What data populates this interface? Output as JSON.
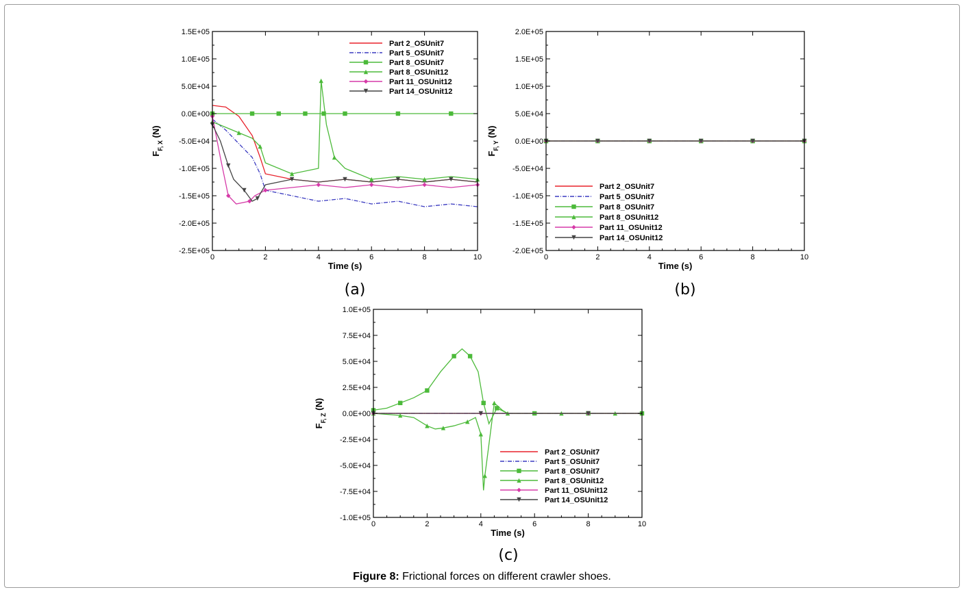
{
  "caption": {
    "label": "Figure 8:",
    "text": "Frictional forces on different crawler shoes."
  },
  "series_styles": [
    {
      "name": "Part 2_OSUnit7",
      "color": "#e8202a",
      "dash": "",
      "marker": "none"
    },
    {
      "name": "Part 5_OSUnit7",
      "color": "#3a3ac0",
      "dash": "6,2,1,2",
      "marker": "none"
    },
    {
      "name": "Part 8_OSUnit7",
      "color": "#4cba3a",
      "dash": "",
      "marker": "square"
    },
    {
      "name": "Part 8_OSUnit12",
      "color": "#4cba3a",
      "dash": "",
      "marker": "triangle"
    },
    {
      "name": "Part 11_OSUnit12",
      "color": "#d63aa8",
      "dash": "",
      "marker": "diamond"
    },
    {
      "name": "Part 14_OSUnit12",
      "color": "#444444",
      "dash": "",
      "marker": "tri-down"
    }
  ],
  "chart_data": [
    {
      "panel": "(a)",
      "type": "line",
      "xlabel": "Time (s)",
      "ylabel": "F_F,X (N)",
      "ylabel_main": "F",
      "ylabel_sub": "F, X",
      "ylabel_unit": " (N)",
      "xlim": [
        0,
        10
      ],
      "ylim": [
        -250000,
        150000
      ],
      "xticks": [
        "0",
        "2",
        "4",
        "6",
        "8",
        "10"
      ],
      "yticks": [
        "1.5E+05",
        "1.0E+05",
        "5.0E+04",
        "0.0E+00",
        "-5.0E+04",
        "-1.0E+05",
        "-1.5E+05",
        "-2.0E+05",
        "-2.5E+05"
      ],
      "legend_position": "top-right",
      "series": [
        {
          "name": "Part 2_OSUnit7",
          "x": [
            0,
            0.5,
            1.0,
            1.5,
            1.8,
            2,
            3,
            4,
            5,
            6,
            7,
            8,
            9,
            10
          ],
          "y": [
            15000,
            12000,
            -5000,
            -40000,
            -80000,
            -110000,
            -120000,
            -125000,
            -120000,
            -125000,
            -120000,
            -125000,
            -120000,
            -125000
          ]
        },
        {
          "name": "Part 5_OSUnit7",
          "x": [
            0,
            0.5,
            1.0,
            1.5,
            1.8,
            2,
            3,
            4,
            5,
            6,
            7,
            8,
            9,
            10
          ],
          "y": [
            -10000,
            -30000,
            -55000,
            -80000,
            -110000,
            -140000,
            -150000,
            -160000,
            -155000,
            -165000,
            -160000,
            -170000,
            -165000,
            -170000
          ]
        },
        {
          "name": "Part 8_OSUnit7",
          "x": [
            0,
            1.0,
            1.5,
            2,
            2.5,
            3,
            3.5,
            4,
            4.2,
            4.5,
            5,
            6,
            7,
            8,
            9,
            10
          ],
          "y": [
            0,
            0,
            0,
            0,
            0,
            0,
            0,
            0,
            0,
            0,
            0,
            0,
            0,
            0,
            0,
            0
          ]
        },
        {
          "name": "Part 8_OSUnit12",
          "x": [
            0,
            0.5,
            1.0,
            1.5,
            1.8,
            2,
            3,
            4,
            4.1,
            4.3,
            4.6,
            5,
            6,
            7,
            8,
            9,
            10
          ],
          "y": [
            -15000,
            -25000,
            -35000,
            -45000,
            -60000,
            -90000,
            -110000,
            -100000,
            60000,
            -20000,
            -80000,
            -100000,
            -120000,
            -115000,
            -120000,
            -115000,
            -120000
          ]
        },
        {
          "name": "Part 11_OSUnit12",
          "x": [
            0,
            0.3,
            0.6,
            0.9,
            1.4,
            1.6,
            2,
            3,
            4,
            5,
            6,
            7,
            8,
            9,
            10
          ],
          "y": [
            -5000,
            -80000,
            -150000,
            -165000,
            -160000,
            -150000,
            -140000,
            -135000,
            -130000,
            -135000,
            -130000,
            -135000,
            -130000,
            -135000,
            -130000
          ]
        },
        {
          "name": "Part 14_OSUnit12",
          "x": [
            0,
            0.3,
            0.6,
            0.8,
            1.2,
            1.5,
            1.7,
            2,
            3,
            4,
            5,
            6,
            7,
            8,
            9,
            10
          ],
          "y": [
            -20000,
            -50000,
            -95000,
            -120000,
            -140000,
            -160000,
            -155000,
            -130000,
            -120000,
            -125000,
            -120000,
            -125000,
            -120000,
            -125000,
            -120000,
            -125000
          ]
        }
      ]
    },
    {
      "panel": "(b)",
      "type": "line",
      "xlabel": "Time (s)",
      "ylabel": "F_F,Y (N)",
      "ylabel_main": "F",
      "ylabel_sub": "F, Y",
      "ylabel_unit": " (N)",
      "xlim": [
        0,
        10
      ],
      "ylim": [
        -200000,
        200000
      ],
      "xticks": [
        "0",
        "2",
        "4",
        "6",
        "8",
        "10"
      ],
      "yticks": [
        "2.0E+05",
        "1.5E+05",
        "1.0E+05",
        "5.0E+04",
        "0.0E+00",
        "-5.0E+04",
        "-1.0E+05",
        "-1.5E+05",
        "-2.0E+05"
      ],
      "legend_position": "bottom-left",
      "series": [
        {
          "name": "Part 2_OSUnit7",
          "x": [
            0,
            1,
            2,
            3,
            4,
            5,
            6,
            7,
            8,
            9,
            10
          ],
          "y": [
            0,
            0,
            0,
            0,
            0,
            0,
            0,
            0,
            0,
            0,
            0
          ]
        },
        {
          "name": "Part 5_OSUnit7",
          "x": [
            0,
            1,
            2,
            3,
            4,
            5,
            6,
            7,
            8,
            9,
            10
          ],
          "y": [
            0,
            0,
            0,
            0,
            0,
            0,
            0,
            0,
            0,
            0,
            0
          ]
        },
        {
          "name": "Part 8_OSUnit7",
          "x": [
            0,
            1,
            2,
            3,
            4,
            5,
            6,
            7,
            8,
            9,
            10
          ],
          "y": [
            0,
            0,
            0,
            0,
            0,
            0,
            0,
            0,
            0,
            0,
            0
          ]
        },
        {
          "name": "Part 8_OSUnit12",
          "x": [
            0,
            1,
            2,
            3,
            4,
            5,
            6,
            7,
            8,
            9,
            10
          ],
          "y": [
            0,
            0,
            0,
            0,
            0,
            0,
            0,
            0,
            0,
            0,
            0
          ]
        },
        {
          "name": "Part 11_OSUnit12",
          "x": [
            0,
            1,
            2,
            3,
            4,
            5,
            6,
            7,
            8,
            9,
            10
          ],
          "y": [
            0,
            0,
            0,
            0,
            0,
            0,
            0,
            0,
            0,
            0,
            0
          ]
        },
        {
          "name": "Part 14_OSUnit12",
          "x": [
            0,
            1,
            2,
            3,
            4,
            5,
            6,
            7,
            8,
            9,
            10
          ],
          "y": [
            0,
            0,
            0,
            0,
            0,
            0,
            0,
            0,
            0,
            0,
            0
          ]
        }
      ]
    },
    {
      "panel": "(c)",
      "type": "line",
      "xlabel": "Time (s)",
      "ylabel": "F_F,Z (N)",
      "ylabel_main": "F",
      "ylabel_sub": "F, Z",
      "ylabel_unit": " (N)",
      "xlim": [
        0,
        10
      ],
      "ylim": [
        -100000,
        100000
      ],
      "xticks": [
        "0",
        "2",
        "4",
        "6",
        "8",
        "10"
      ],
      "yticks": [
        "1.0E+05",
        "7.5E+04",
        "5.0E+04",
        "2.5E+04",
        "0.0E+00",
        "-2.5E+04",
        "-5.0E+04",
        "-7.5E+04",
        "-1.0E+05"
      ],
      "legend_position": "bottom-right",
      "series": [
        {
          "name": "Part 2_OSUnit7",
          "x": [
            0,
            2,
            4,
            6,
            8,
            10
          ],
          "y": [
            0,
            0,
            0,
            0,
            0,
            0
          ]
        },
        {
          "name": "Part 5_OSUnit7",
          "x": [
            0,
            2,
            4,
            6,
            8,
            10
          ],
          "y": [
            0,
            0,
            0,
            0,
            0,
            0
          ]
        },
        {
          "name": "Part 8_OSUnit7",
          "x": [
            0,
            0.5,
            1,
            1.5,
            2,
            2.5,
            3,
            3.3,
            3.6,
            3.9,
            4.1,
            4.3,
            4.6,
            5,
            6,
            7,
            8,
            9,
            10
          ],
          "y": [
            3000,
            5000,
            10000,
            15000,
            22000,
            40000,
            55000,
            62000,
            55000,
            40000,
            10000,
            -10000,
            5000,
            0,
            0,
            0,
            0,
            0,
            0
          ]
        },
        {
          "name": "Part 8_OSUnit12",
          "x": [
            0,
            0.5,
            1,
            1.5,
            2,
            2.3,
            2.6,
            3,
            3.5,
            3.8,
            4.0,
            4.1,
            4.15,
            4.3,
            4.5,
            4.8,
            5,
            6,
            7,
            8,
            9,
            10
          ],
          "y": [
            0,
            -1000,
            -2000,
            -4000,
            -12000,
            -15000,
            -14000,
            -12000,
            -8000,
            -4000,
            -20000,
            -74000,
            -60000,
            -30000,
            10000,
            3000,
            0,
            0,
            0,
            0,
            0,
            0
          ]
        },
        {
          "name": "Part 11_OSUnit12",
          "x": [
            0,
            2,
            4,
            6,
            8,
            10
          ],
          "y": [
            0,
            0,
            0,
            0,
            0,
            0
          ]
        },
        {
          "name": "Part 14_OSUnit12",
          "x": [
            0,
            2,
            4,
            6,
            8,
            10
          ],
          "y": [
            0,
            0,
            0,
            0,
            0,
            0
          ]
        }
      ]
    }
  ]
}
